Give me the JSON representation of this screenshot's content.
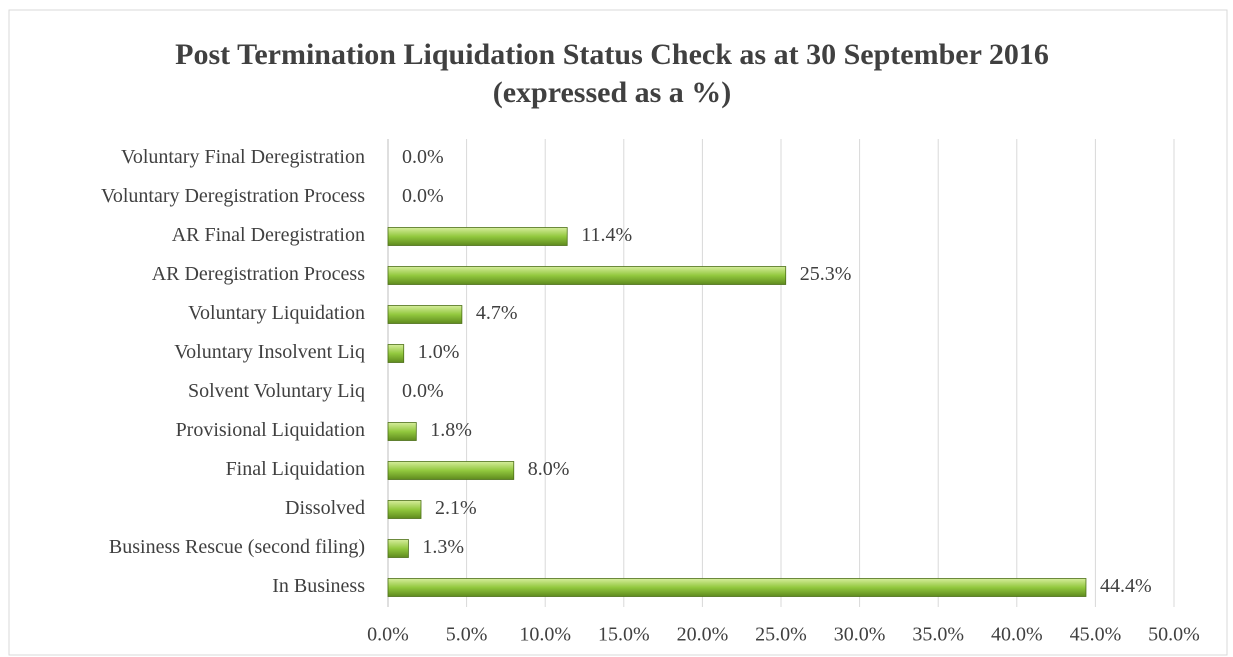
{
  "chart_data": {
    "type": "bar",
    "orientation": "horizontal",
    "title": "Post Termination Liquidation Status Check as at 30 September 2016 (expressed as a %)",
    "categories": [
      "Voluntary Final Deregistration",
      "Voluntary Deregistration Process",
      "AR Final Deregistration",
      "AR Deregistration Process",
      "Voluntary Liquidation",
      "Voluntary Insolvent Liq",
      "Solvent Voluntary Liq",
      "Provisional Liquidation",
      "Final Liquidation",
      "Dissolved",
      "Business Rescue (second filing)",
      "In Business"
    ],
    "values": [
      0.0,
      0.0,
      11.4,
      25.3,
      4.7,
      1.0,
      0.0,
      1.8,
      8.0,
      2.1,
      1.3,
      44.4
    ],
    "value_labels": [
      "0.0%",
      "0.0%",
      "11.4%",
      "25.3%",
      "4.7%",
      "1.0%",
      "0.0%",
      "1.8%",
      "8.0%",
      "2.1%",
      "1.3%",
      "44.4%"
    ],
    "color": "#92c83e",
    "xlim": [
      0,
      50
    ],
    "xticks": [
      {
        "value": 0,
        "label": "0.0%"
      },
      {
        "value": 5,
        "label": "5.0%"
      },
      {
        "value": 10,
        "label": "10.0%"
      },
      {
        "value": 15,
        "label": "15.0%"
      },
      {
        "value": 20,
        "label": "20.0%"
      },
      {
        "value": 25,
        "label": "25.0%"
      },
      {
        "value": 30,
        "label": "30.0%"
      },
      {
        "value": 35,
        "label": "35.0%"
      },
      {
        "value": 40,
        "label": "40.0%"
      },
      {
        "value": 45,
        "label": "45.0%"
      },
      {
        "value": 50,
        "label": "50.0%"
      }
    ],
    "grid": true
  }
}
